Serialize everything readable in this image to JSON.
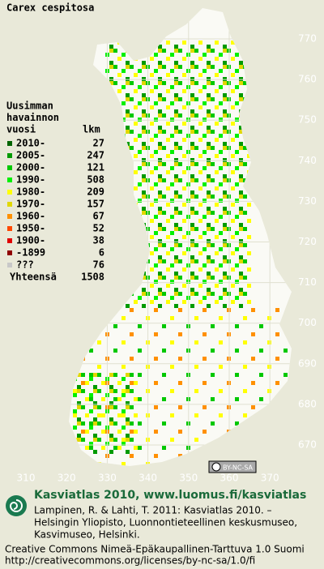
{
  "title": "Carex cespitosa",
  "legend": {
    "heading": [
      "Uusimman",
      "havainnon",
      "vuosi"
    ],
    "count_heading": "lkm",
    "rows": [
      {
        "label": "2010-",
        "count": 27,
        "color": "#006400"
      },
      {
        "label": "2005-",
        "count": 247,
        "color": "#009a00"
      },
      {
        "label": "2000-",
        "count": 121,
        "color": "#00c800"
      },
      {
        "label": "1990-",
        "count": 508,
        "color": "#00f000"
      },
      {
        "label": "1980-",
        "count": 209,
        "color": "#ffff00"
      },
      {
        "label": "1970-",
        "count": 157,
        "color": "#e0d800"
      },
      {
        "label": "1960-",
        "count": 67,
        "color": "#ff9000"
      },
      {
        "label": "1950-",
        "count": 52,
        "color": "#ff4800"
      },
      {
        "label": "1900-",
        "count": 38,
        "color": "#e00000"
      },
      {
        "label": "-1899",
        "count": 6,
        "color": "#900000"
      },
      {
        "label": "???",
        "count": 76,
        "color": "#c8c8c8"
      }
    ],
    "total_label": "Yhteensä",
    "total": 1508
  },
  "grid": {
    "y_labels": [
      770,
      760,
      750,
      740,
      730,
      720,
      710,
      700,
      690,
      680,
      670
    ],
    "x_labels": [
      310,
      320,
      330,
      340,
      350,
      360,
      370
    ]
  },
  "license_badge": "BY-NC-SA",
  "footer": {
    "brand": "Kasviatlas 2010, www.luomus.fi/kasviatlas",
    "citation": [
      "Lampinen, R. & Lahti, T. 2011: Kasviatlas 2010. –",
      "Helsingin Yliopisto, Luonnontieteellinen keskusmuseo,",
      "Kasvimuseo, Helsinki."
    ],
    "license": [
      "Creative Commons Nimeä-Epäkaupallinen-Tarttuva 1.0 Suomi",
      "http://creativecommons.org/licenses/by-nc-sa/1.0/fi"
    ]
  }
}
